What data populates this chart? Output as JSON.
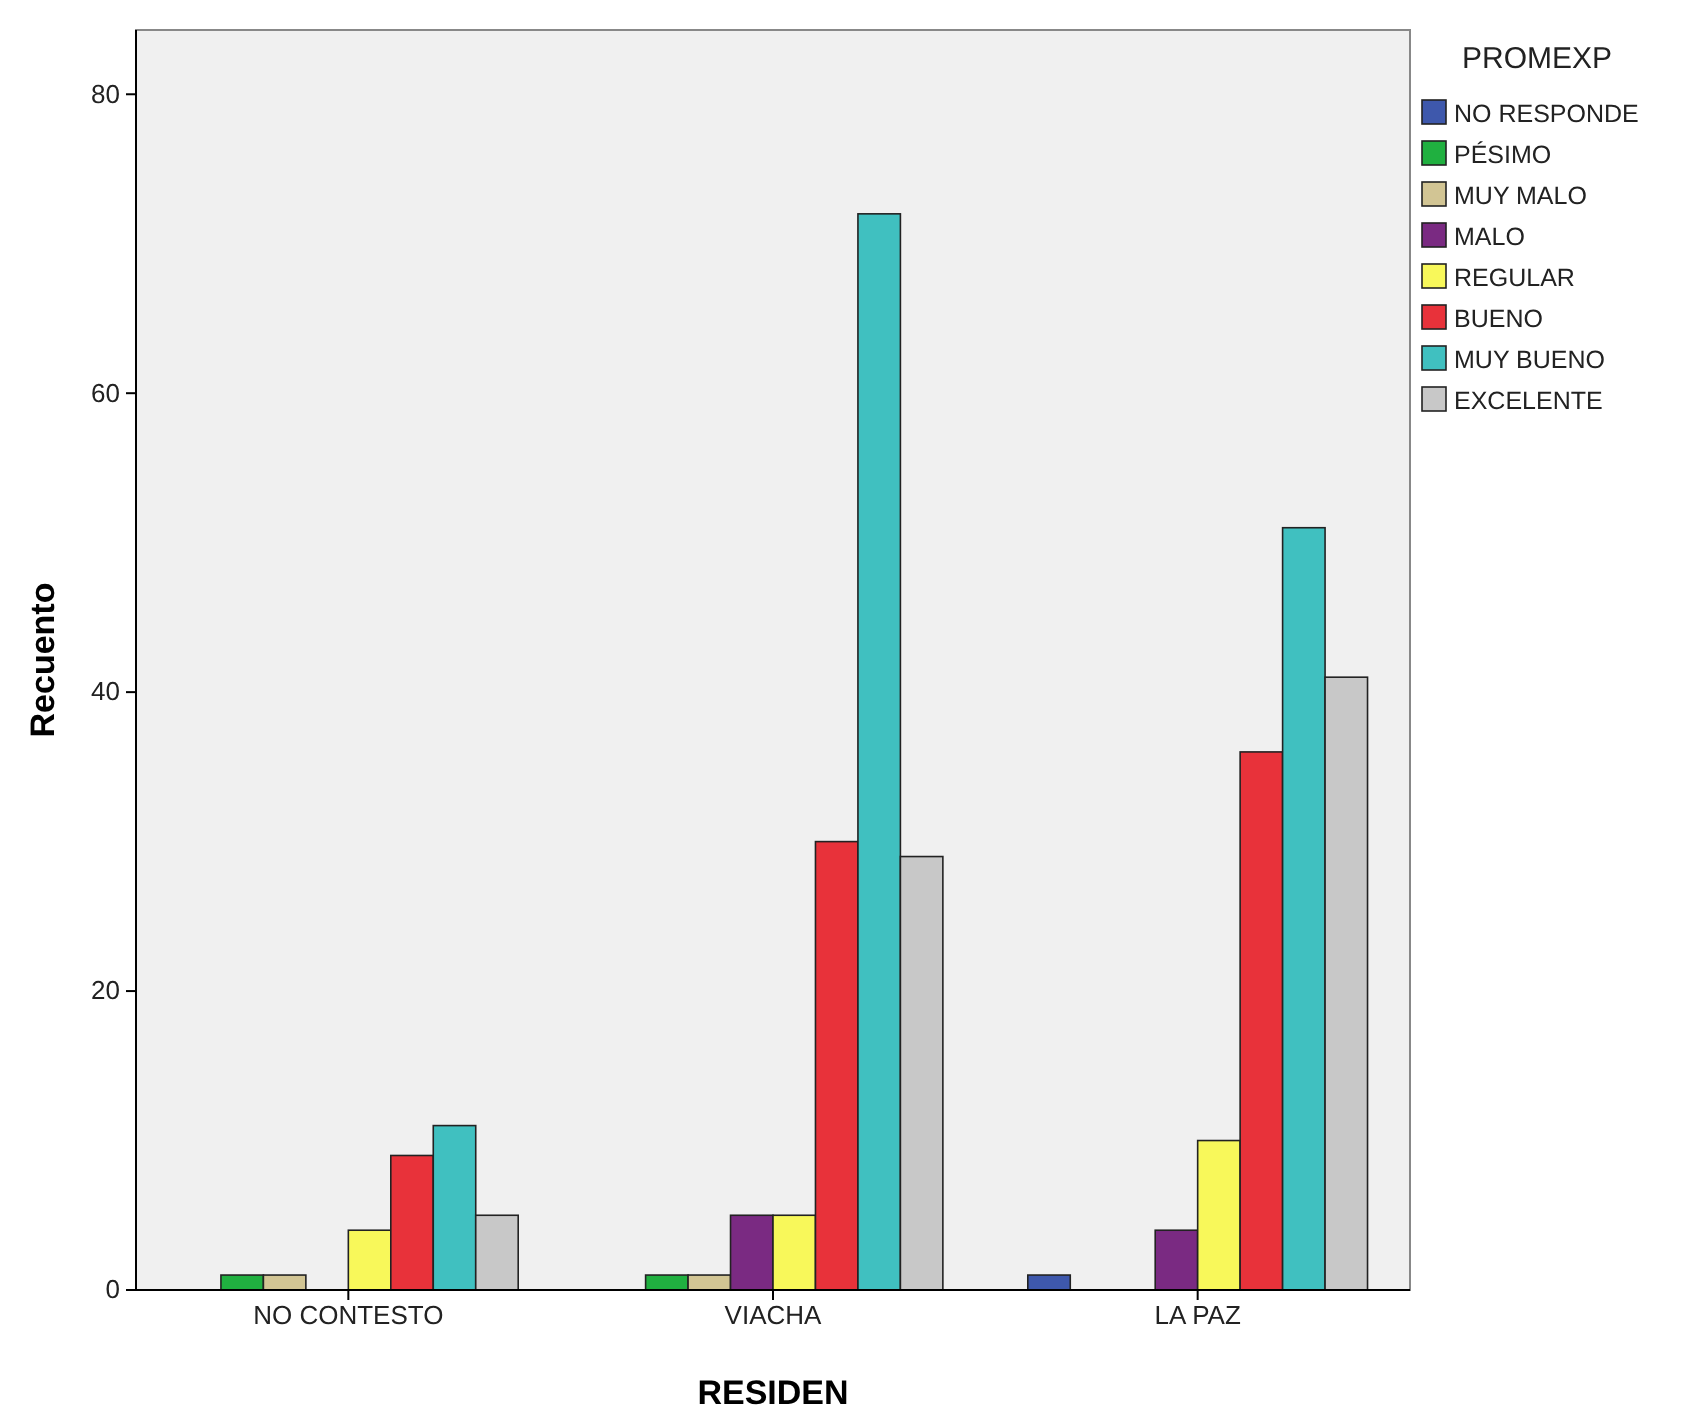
{
  "chart_data": {
    "type": "bar",
    "xlabel": "RESIDEN",
    "ylabel": "Recuento",
    "legend_title": "PROMEXP",
    "categories": [
      "NO CONTESTO",
      "VIACHA",
      "LA PAZ"
    ],
    "series": [
      {
        "name": "NO RESPONDE",
        "color": "#3e58ac",
        "values": [
          0,
          0,
          1
        ]
      },
      {
        "name": "PÉSIMO",
        "color": "#20b040",
        "values": [
          1,
          1,
          0
        ]
      },
      {
        "name": "MUY MALO",
        "color": "#d2c594",
        "values": [
          1,
          1,
          0
        ]
      },
      {
        "name": "MALO",
        "color": "#7a2a82",
        "values": [
          0,
          5,
          4
        ]
      },
      {
        "name": "REGULAR",
        "color": "#f8f85a",
        "values": [
          4,
          5,
          10
        ]
      },
      {
        "name": "BUENO",
        "color": "#e8323a",
        "values": [
          9,
          30,
          36
        ]
      },
      {
        "name": "MUY BUENO",
        "color": "#40c0c0",
        "values": [
          11,
          72,
          51
        ]
      },
      {
        "name": "EXCELENTE",
        "color": "#c8c8c8",
        "values": [
          5,
          29,
          41
        ]
      }
    ],
    "ylim": [
      0,
      84.3
    ],
    "yticks": [
      0,
      20,
      40,
      60,
      80
    ],
    "grid": false,
    "legend": "right"
  }
}
